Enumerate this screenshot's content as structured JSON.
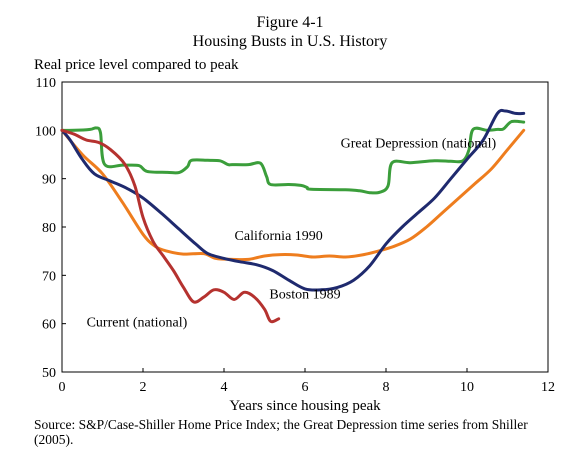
{
  "chart_data": {
    "type": "line",
    "title": "Figure 4-1",
    "subtitle": "Housing Busts in U.S. History",
    "ylabel": "Real price level compared to peak",
    "xlabel": "Years since housing peak",
    "xlim": [
      0,
      12
    ],
    "ylim": [
      50,
      110
    ],
    "xticks": [
      0,
      2,
      4,
      6,
      8,
      10,
      12
    ],
    "yticks": [
      50,
      60,
      70,
      80,
      90,
      100,
      110
    ],
    "grid": false,
    "legend": "inline labels",
    "source": "Source: S&P/Case-Shiller Home Price Index; the Great Depression time series from Shiller (2005).",
    "series": [
      {
        "name": "Great Depression (national)",
        "label_at": [
          8.8,
          96.5
        ],
        "color": "#3b9e3b",
        "x": [
          0,
          0.3,
          0.7,
          0.85,
          0.95,
          1.05,
          1.5,
          1.9,
          2.1,
          2.6,
          2.9,
          3.1,
          3.2,
          3.6,
          3.9,
          4.1,
          4.2,
          4.6,
          4.9,
          5.05,
          5.15,
          5.6,
          5.9,
          6.05,
          6.15,
          7.0,
          7.35,
          7.6,
          7.85,
          8.05,
          8.15,
          8.6,
          9.2,
          9.6,
          9.9,
          10.05,
          10.15,
          10.5,
          10.75,
          10.9,
          11.1,
          11.4
        ],
        "y": [
          100,
          100,
          100.2,
          100.5,
          99.5,
          93,
          92.8,
          92.7,
          91.5,
          91.3,
          91.3,
          92.5,
          93.8,
          93.8,
          93.7,
          92.9,
          92.9,
          92.9,
          93.2,
          90.5,
          88.8,
          88.8,
          88.6,
          88.2,
          87.8,
          87.7,
          87.5,
          87.1,
          87.2,
          88.5,
          93.3,
          93.3,
          93.7,
          93.6,
          93.7,
          96,
          100.2,
          100,
          100.2,
          100.3,
          101.8,
          101.7
        ]
      },
      {
        "name": "California 1990",
        "label_at": [
          5.35,
          77.3
        ],
        "color": "#ee7d1e",
        "x": [
          0,
          0.5,
          1.0,
          1.5,
          2.0,
          2.3,
          2.6,
          3.0,
          3.5,
          3.8,
          4.2,
          4.6,
          5.0,
          5.4,
          5.8,
          6.2,
          6.6,
          7.0,
          7.4,
          7.8,
          8.2,
          8.6,
          9.0,
          9.4,
          9.8,
          10.2,
          10.6,
          11.0,
          11.4
        ],
        "y": [
          100,
          95,
          91,
          85,
          78.5,
          76,
          75,
          74.4,
          74.5,
          73.5,
          73.3,
          73.3,
          74,
          74.3,
          74.2,
          73.8,
          74,
          73.8,
          74.2,
          75,
          76,
          77.5,
          80,
          83,
          86,
          89,
          92,
          96,
          100
        ]
      },
      {
        "name": "Boston 1989",
        "label_at": [
          6.0,
          65.2
        ],
        "color": "#1f2a6e",
        "x": [
          0,
          0.2,
          0.5,
          0.8,
          1.2,
          1.6,
          2.0,
          2.5,
          2.9,
          3.3,
          3.6,
          4.0,
          4.4,
          4.8,
          5.2,
          5.6,
          6.0,
          6.4,
          6.8,
          7.2,
          7.6,
          8.0,
          8.4,
          8.8,
          9.2,
          9.6,
          10.0,
          10.4,
          10.75,
          10.95,
          11.2,
          11.4
        ],
        "y": [
          100,
          98,
          94,
          91,
          89.5,
          88,
          86,
          82.5,
          79.5,
          76.5,
          74.5,
          73.5,
          72.8,
          72.2,
          71,
          69,
          67.2,
          67,
          67.5,
          69,
          72,
          76.5,
          80,
          83,
          86,
          90,
          94,
          98,
          103.5,
          104,
          103.5,
          103.5
        ]
      },
      {
        "name": "Current (national)",
        "label_at": [
          1.85,
          59.4
        ],
        "color": "#b5322f",
        "x": [
          0,
          0.3,
          0.6,
          0.9,
          1.2,
          1.55,
          1.8,
          2.0,
          2.25,
          2.5,
          2.75,
          3.0,
          3.25,
          3.5,
          3.75,
          4.0,
          4.25,
          4.5,
          4.75,
          5.0,
          5.15,
          5.35
        ],
        "y": [
          100,
          99.2,
          98,
          97.5,
          96,
          93,
          88.5,
          82,
          77,
          74,
          71,
          67.5,
          64.5,
          65.5,
          67,
          66.5,
          65,
          66.5,
          65.5,
          63,
          60.5,
          61
        ]
      }
    ]
  }
}
